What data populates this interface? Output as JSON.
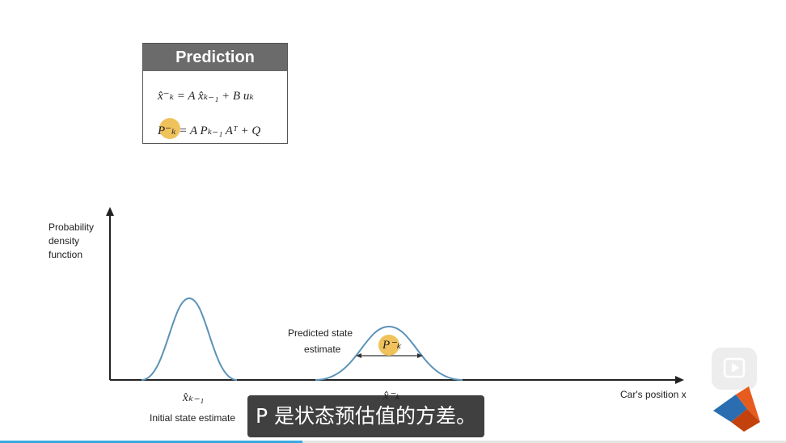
{
  "prediction": {
    "title": "Prediction",
    "eq1": "x̂⁻ₖ = A x̂ₖ₋₁ + B uₖ",
    "eq2_sym": "P⁻ₖ",
    "eq2_rest": "= A Pₖ₋₁ Aᵀ + Q"
  },
  "chart": {
    "y_axis_label": [
      "Probability",
      "density",
      "function"
    ],
    "x_axis_label": "Car's position x",
    "initial_symbol": "x̂ₖ₋₁",
    "initial_label": "Initial state estimate",
    "predicted_label": [
      "Predicted state",
      "estimate"
    ],
    "predicted_symbol": "x̂⁻ₖ",
    "covariance_symbol": "P⁻ₖ"
  },
  "subtitle": "P 是状态预估值的方差。",
  "video": {
    "progress_fraction": 0.385
  },
  "colors": {
    "curve": "#5b92b8",
    "highlight": "#f0c25c",
    "progress": "#39a9e0"
  }
}
